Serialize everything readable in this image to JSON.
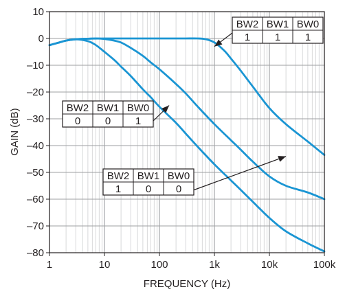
{
  "chart_data": {
    "type": "line",
    "xlabel": "FREQUENCY (Hz)",
    "ylabel": "GAIN (dB)",
    "xscale": "log",
    "xlim": [
      1,
      100000
    ],
    "ylim": [
      -80,
      10
    ],
    "grid": true,
    "line_color": "#1a95d3",
    "x_ticks": [
      {
        "value": 1,
        "label": "1"
      },
      {
        "value": 10,
        "label": "10"
      },
      {
        "value": 100,
        "label": "100"
      },
      {
        "value": 1000,
        "label": "1k"
      },
      {
        "value": 10000,
        "label": "10k"
      },
      {
        "value": 100000,
        "label": "100k"
      }
    ],
    "y_ticks": [
      {
        "value": 10,
        "label": "10"
      },
      {
        "value": 0,
        "label": "0"
      },
      {
        "value": -10,
        "label": "–10"
      },
      {
        "value": -20,
        "label": "–20"
      },
      {
        "value": -30,
        "label": "–30"
      },
      {
        "value": -40,
        "label": "–40"
      },
      {
        "value": -50,
        "label": "–50"
      },
      {
        "value": -60,
        "label": "–60"
      },
      {
        "value": -70,
        "label": "–70"
      },
      {
        "value": -80,
        "label": "–80"
      }
    ],
    "series": [
      {
        "x": [
          1,
          1.5,
          2,
          3,
          5,
          10,
          20,
          30,
          50,
          100,
          200,
          300,
          500,
          700,
          1000,
          1500,
          2000,
          3000,
          5000,
          10000,
          20000,
          50000,
          100000
        ],
        "y": [
          -2.5,
          -1.5,
          -0.8,
          -0.3,
          -0.1,
          0,
          0,
          0,
          0,
          0,
          0,
          0,
          0,
          -0.3,
          -1.5,
          -4.5,
          -7.5,
          -12,
          -18,
          -26,
          -32,
          -38.5,
          -43.5
        ]
      },
      {
        "x": [
          1,
          1.5,
          2,
          3,
          5,
          7,
          10,
          15,
          20,
          30,
          50,
          70,
          100,
          200,
          300,
          500,
          1000,
          2000,
          3000,
          5000,
          10000,
          20000,
          50000,
          100000
        ],
        "y": [
          -2.5,
          -1.5,
          -0.8,
          -0.3,
          -0.1,
          0,
          -0.2,
          -0.8,
          -1.5,
          -3.5,
          -6.5,
          -9,
          -11.5,
          -17,
          -20.5,
          -25.5,
          -32,
          -38,
          -41.5,
          -46,
          -51.5,
          -55,
          -57.5,
          -60
        ]
      },
      {
        "x": [
          1,
          1.5,
          2,
          3,
          5,
          7,
          10,
          15,
          20,
          30,
          50,
          70,
          100,
          200,
          300,
          500,
          1000,
          2000,
          3000,
          5000,
          10000,
          20000,
          50000,
          100000
        ],
        "y": [
          -2.5,
          -1.5,
          -0.8,
          -0.3,
          -1,
          -2.5,
          -5,
          -8,
          -10.5,
          -14,
          -19,
          -22,
          -25.5,
          -31.5,
          -35.5,
          -40.5,
          -47,
          -53,
          -56.5,
          -61,
          -67,
          -72,
          -76.5,
          -79.5
        ]
      }
    ],
    "annotations": [
      {
        "headers": [
          "BW2",
          "BW1",
          "BW0"
        ],
        "values": [
          "1",
          "1",
          "1"
        ],
        "pointer": {
          "x": 1000,
          "y": -3
        }
      },
      {
        "headers": [
          "BW2",
          "BW1",
          "BW0"
        ],
        "values": [
          "0",
          "0",
          "1"
        ],
        "pointer": {
          "x": 150,
          "y": -25
        }
      },
      {
        "headers": [
          "BW2",
          "BW1",
          "BW0"
        ],
        "values": [
          "1",
          "0",
          "0"
        ],
        "pointer": {
          "x": 20000,
          "y": -44
        }
      }
    ]
  }
}
